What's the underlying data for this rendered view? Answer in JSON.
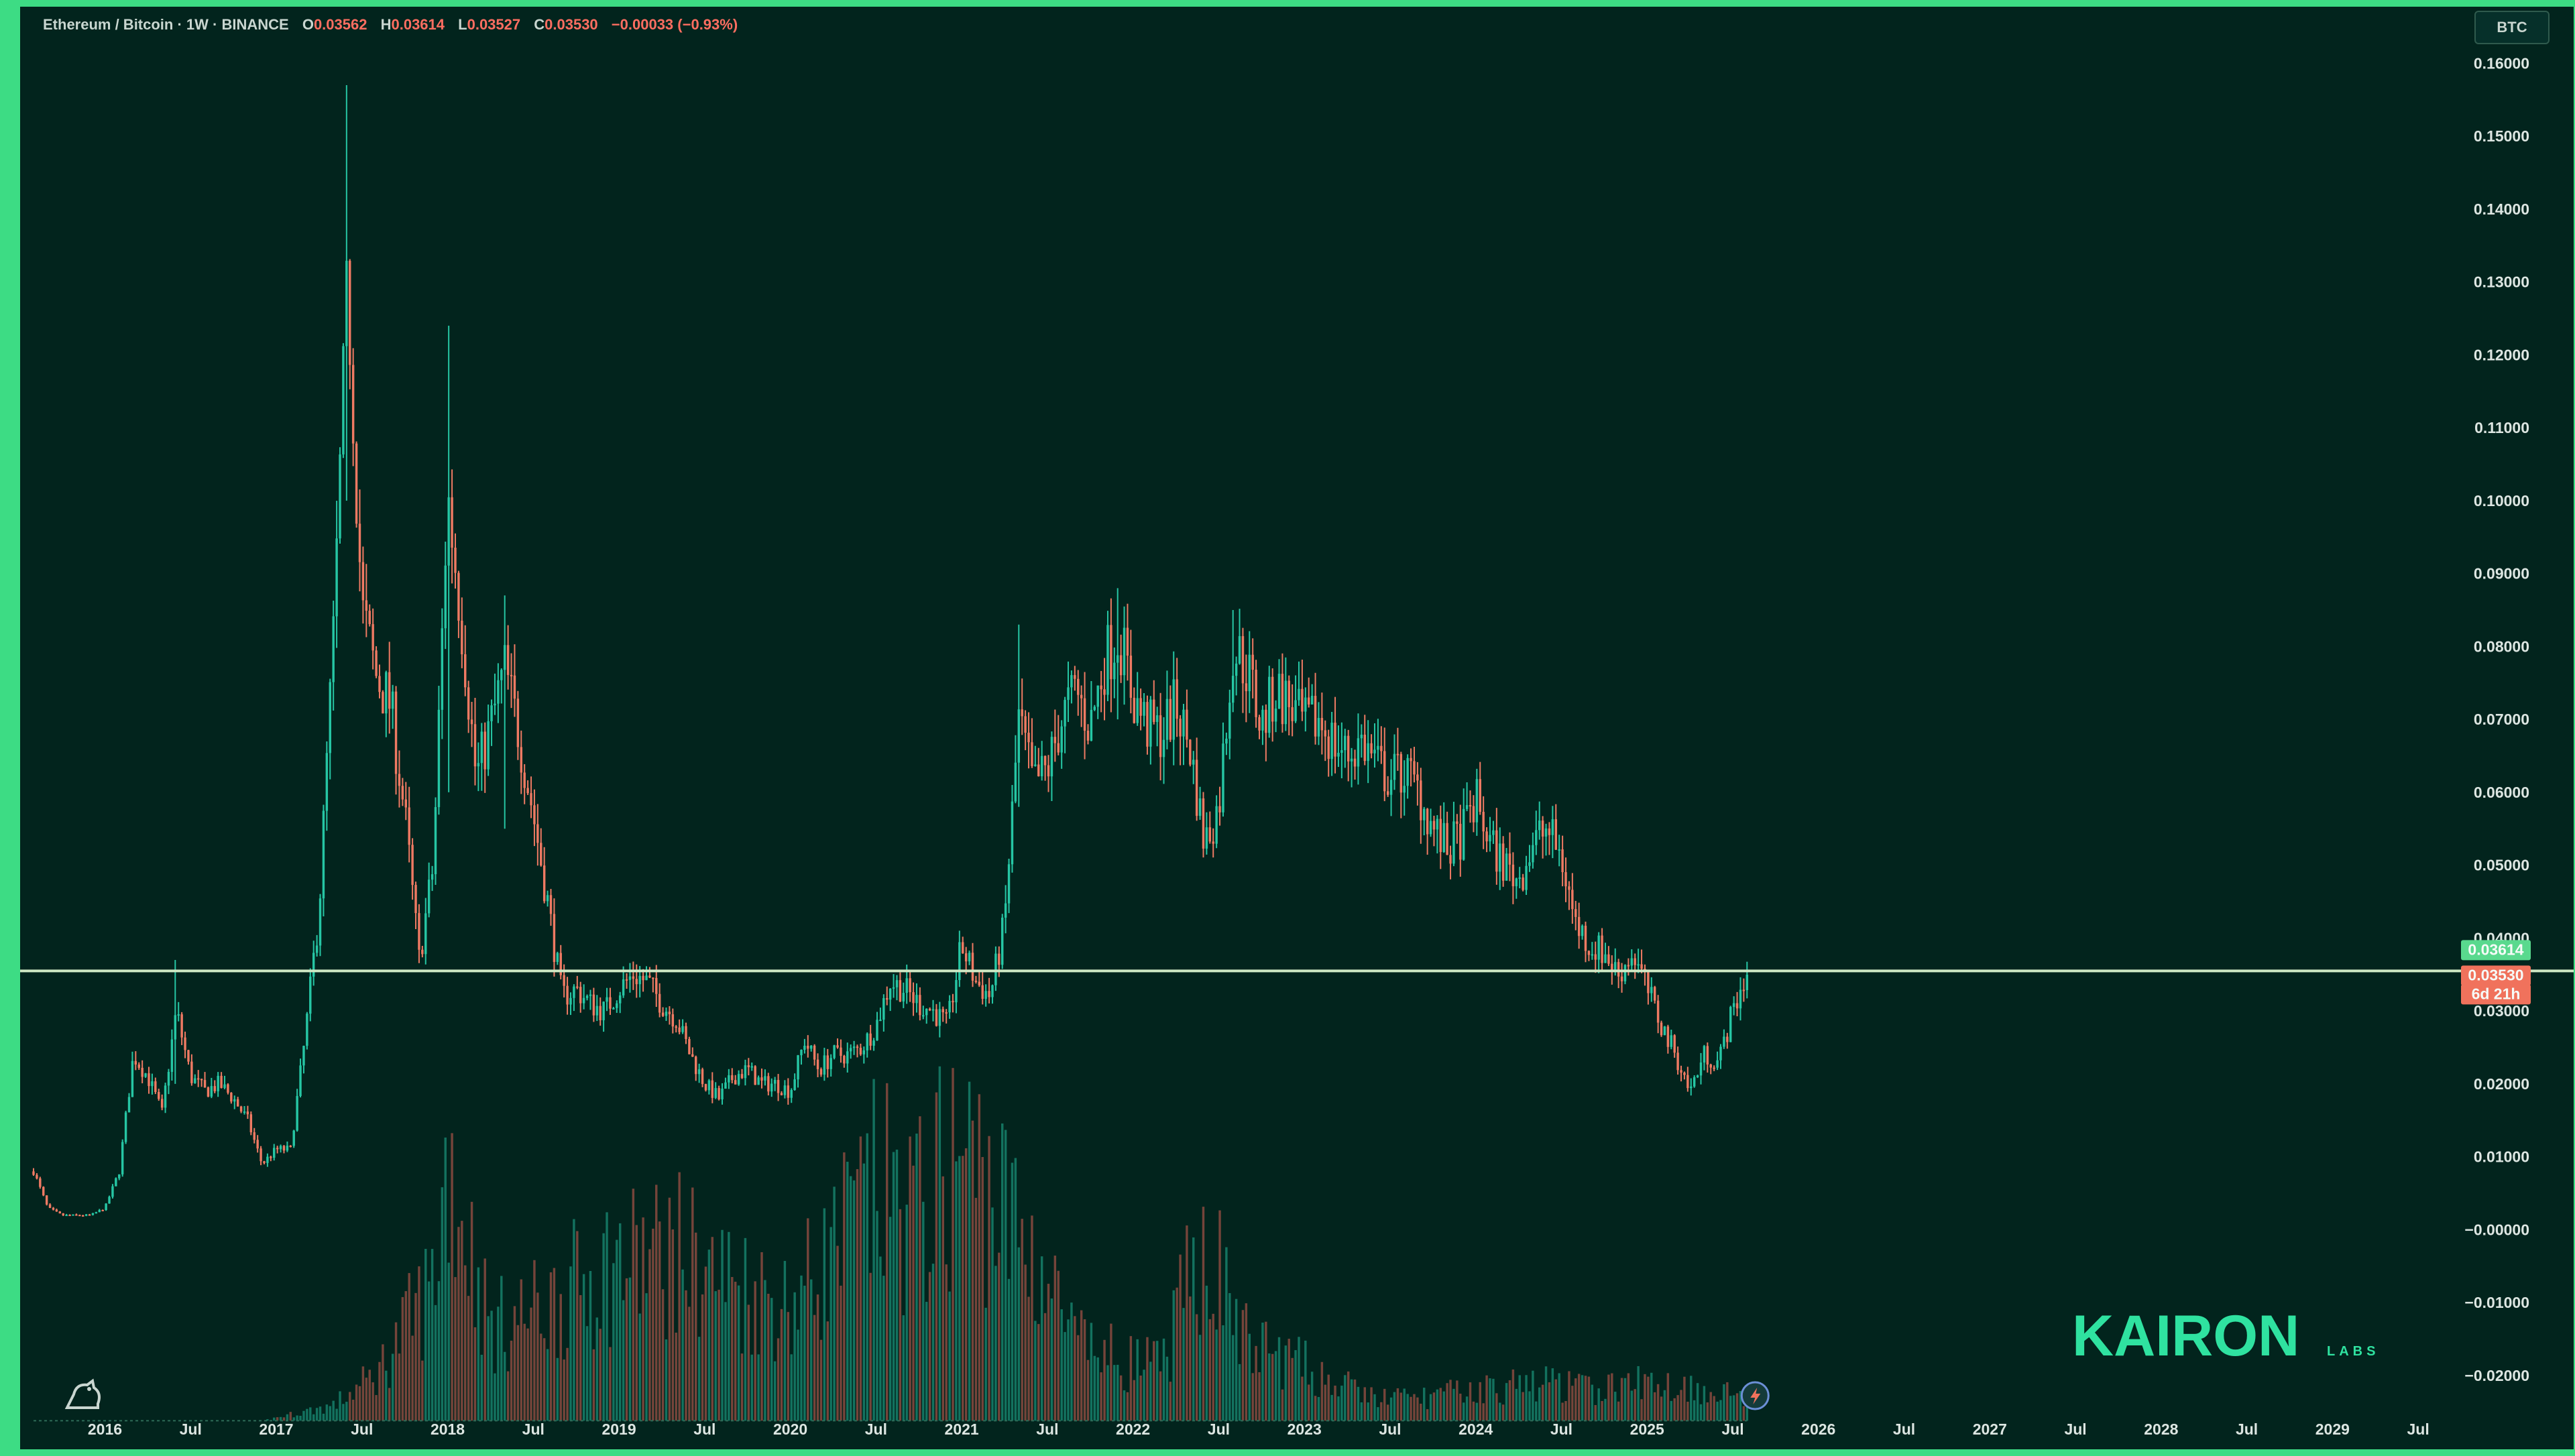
{
  "header": {
    "symbol": "Ethereum / Bitcoin · 1W · BINANCE",
    "open_label": "O",
    "open": "0.03562",
    "high_label": "H",
    "high": "0.03614",
    "low_label": "L",
    "low": "0.03527",
    "close_label": "C",
    "close": "0.03530",
    "change": "−0.00033 (−0.93%)"
  },
  "currency_button": "BTC",
  "price_tags": {
    "upper": "0.03614",
    "current": "0.03530",
    "countdown": "6d 21h"
  },
  "logo": {
    "brand": "KAIRON",
    "sub": "LABS"
  },
  "colors": {
    "up": "#26c6a4",
    "down": "#ef7a63",
    "background": "#02241d",
    "frame": "#3ddc84",
    "line": "#cfe8c4"
  },
  "icons": {
    "corner": "tradingview-logo-icon",
    "time": "lightning-icon"
  },
  "chart_data": {
    "type": "candlestick",
    "interval": "1W",
    "grid": false,
    "y_axis": {
      "ticks": [
        "0.16000",
        "0.15000",
        "0.14000",
        "0.13000",
        "0.12000",
        "0.11000",
        "0.10000",
        "0.09000",
        "0.08000",
        "0.07000",
        "0.06000",
        "0.05000",
        "0.04000",
        "0.03000",
        "0.02000",
        "0.01000",
        "−0.00000",
        "−0.01000",
        "−0.02000"
      ],
      "range": [
        -0.0235,
        0.165
      ]
    },
    "x_axis": {
      "ticks": [
        "2016",
        "Jul",
        "2017",
        "Jul",
        "2018",
        "Jul",
        "2019",
        "Jul",
        "2020",
        "Jul",
        "2021",
        "Jul",
        "2022",
        "Jul",
        "2023",
        "Jul",
        "2024",
        "Jul",
        "2025",
        "Jul",
        "2026",
        "Jul",
        "2027",
        "Jul",
        "2028",
        "Jul",
        "2029",
        "Jul"
      ],
      "range": [
        "2015-08",
        "2029-10"
      ]
    },
    "horizontal_line": 0.0355,
    "price_path": [
      [
        "2015-08",
        0.008
      ],
      [
        "2015-09",
        0.003
      ],
      [
        "2015-10",
        0.002
      ],
      [
        "2015-11",
        0.002
      ],
      [
        "2015-12",
        0.002
      ],
      [
        "2016-01",
        0.003
      ],
      [
        "2016-02",
        0.008
      ],
      [
        "2016-03",
        0.024
      ],
      [
        "2016-04",
        0.021
      ],
      [
        "2016-05",
        0.016
      ],
      [
        "2016-06",
        0.03
      ],
      [
        "2016-07",
        0.021
      ],
      [
        "2016-08",
        0.019
      ],
      [
        "2016-09",
        0.02
      ],
      [
        "2016-10",
        0.018
      ],
      [
        "2016-11",
        0.015
      ],
      [
        "2016-12",
        0.009
      ],
      [
        "2017-01",
        0.011
      ],
      [
        "2017-02",
        0.011
      ],
      [
        "2017-03",
        0.026
      ],
      [
        "2017-04",
        0.044
      ],
      [
        "2017-05",
        0.081
      ],
      [
        "2017-06",
        0.13
      ],
      [
        "2017-07",
        0.085
      ],
      [
        "2017-08",
        0.076
      ],
      [
        "2017-09",
        0.072
      ],
      [
        "2017-10",
        0.057
      ],
      [
        "2017-11",
        0.037
      ],
      [
        "2017-12",
        0.05
      ],
      [
        "2018-01",
        0.101
      ],
      [
        "2018-02",
        0.083
      ],
      [
        "2018-03",
        0.062
      ],
      [
        "2018-04",
        0.069
      ],
      [
        "2018-05",
        0.077
      ],
      [
        "2018-06",
        0.068
      ],
      [
        "2018-07",
        0.057
      ],
      [
        "2018-08",
        0.045
      ],
      [
        "2018-09",
        0.032
      ],
      [
        "2018-10",
        0.033
      ],
      [
        "2018-11",
        0.031
      ],
      [
        "2018-12",
        0.03
      ],
      [
        "2019-01",
        0.033
      ],
      [
        "2019-02",
        0.035
      ],
      [
        "2019-03",
        0.034
      ],
      [
        "2019-04",
        0.031
      ],
      [
        "2019-05",
        0.029
      ],
      [
        "2019-06",
        0.024
      ],
      [
        "2019-07",
        0.02
      ],
      [
        "2019-08",
        0.018
      ],
      [
        "2019-09",
        0.021
      ],
      [
        "2019-10",
        0.022
      ],
      [
        "2019-11",
        0.02
      ],
      [
        "2019-12",
        0.02
      ],
      [
        "2020-01",
        0.019
      ],
      [
        "2020-02",
        0.026
      ],
      [
        "2020-03",
        0.022
      ],
      [
        "2020-04",
        0.024
      ],
      [
        "2020-05",
        0.024
      ],
      [
        "2020-06",
        0.025
      ],
      [
        "2020-07",
        0.028
      ],
      [
        "2020-08",
        0.034
      ],
      [
        "2020-09",
        0.033
      ],
      [
        "2020-10",
        0.031
      ],
      [
        "2020-11",
        0.03
      ],
      [
        "2020-12",
        0.028
      ],
      [
        "2021-01",
        0.039
      ],
      [
        "2021-02",
        0.034
      ],
      [
        "2021-03",
        0.032
      ],
      [
        "2021-04",
        0.042
      ],
      [
        "2021-05",
        0.07
      ],
      [
        "2021-06",
        0.061
      ],
      [
        "2021-07",
        0.063
      ],
      [
        "2021-08",
        0.07
      ],
      [
        "2021-09",
        0.074
      ],
      [
        "2021-10",
        0.069
      ],
      [
        "2021-11",
        0.078
      ],
      [
        "2021-12",
        0.082
      ],
      [
        "2022-01",
        0.073
      ],
      [
        "2022-02",
        0.069
      ],
      [
        "2022-03",
        0.068
      ],
      [
        "2022-04",
        0.072
      ],
      [
        "2022-05",
        0.066
      ],
      [
        "2022-06",
        0.053
      ],
      [
        "2022-07",
        0.058
      ],
      [
        "2022-08",
        0.08
      ],
      [
        "2022-09",
        0.077
      ],
      [
        "2022-10",
        0.069
      ],
      [
        "2022-11",
        0.074
      ],
      [
        "2022-12",
        0.072
      ],
      [
        "2023-01",
        0.069
      ],
      [
        "2023-02",
        0.07
      ],
      [
        "2023-03",
        0.067
      ],
      [
        "2023-04",
        0.065
      ],
      [
        "2023-05",
        0.067
      ],
      [
        "2023-06",
        0.064
      ],
      [
        "2023-07",
        0.062
      ],
      [
        "2023-08",
        0.063
      ],
      [
        "2023-09",
        0.06
      ],
      [
        "2023-10",
        0.055
      ],
      [
        "2023-11",
        0.052
      ],
      [
        "2023-12",
        0.054
      ],
      [
        "2024-01",
        0.059
      ],
      [
        "2024-02",
        0.053
      ],
      [
        "2024-03",
        0.05
      ],
      [
        "2024-04",
        0.048
      ],
      [
        "2024-05",
        0.053
      ],
      [
        "2024-06",
        0.055
      ],
      [
        "2024-07",
        0.051
      ],
      [
        "2024-08",
        0.042
      ],
      [
        "2024-09",
        0.039
      ],
      [
        "2024-10",
        0.038
      ],
      [
        "2024-11",
        0.035
      ],
      [
        "2024-12",
        0.038
      ],
      [
        "2025-01",
        0.033
      ],
      [
        "2025-02",
        0.028
      ],
      [
        "2025-03",
        0.024
      ],
      [
        "2025-04",
        0.019
      ],
      [
        "2025-05",
        0.024
      ],
      [
        "2025-06",
        0.023
      ],
      [
        "2025-07",
        0.03
      ],
      [
        "2025-08",
        0.0353
      ]
    ],
    "spikes": [
      [
        "2017-06",
        0.157,
        0.1
      ],
      [
        "2018-01",
        0.124,
        0.06
      ],
      [
        "2021-12",
        0.088,
        0.07
      ],
      [
        "2022-08",
        0.085,
        0.072
      ],
      [
        "2016-06",
        0.037,
        0.02
      ],
      [
        "2018-05",
        0.087,
        0.055
      ],
      [
        "2021-05",
        0.083,
        0.058
      ]
    ],
    "volume_path": [
      [
        "2015-08",
        0
      ],
      [
        "2016-12",
        0
      ],
      [
        "2017-05",
        0.002
      ],
      [
        "2017-08",
        0.006
      ],
      [
        "2017-12",
        0.018
      ],
      [
        "2018-01",
        0.035
      ],
      [
        "2018-04",
        0.012
      ],
      [
        "2018-08",
        0.015
      ],
      [
        "2018-12",
        0.02
      ],
      [
        "2019-05",
        0.022
      ],
      [
        "2019-09",
        0.018
      ],
      [
        "2020-01",
        0.015
      ],
      [
        "2020-04",
        0.022
      ],
      [
        "2020-07",
        0.03
      ],
      [
        "2020-10",
        0.027
      ],
      [
        "2021-01",
        0.035
      ],
      [
        "2021-03",
        0.03
      ],
      [
        "2021-06",
        0.022
      ],
      [
        "2021-09",
        0.01
      ],
      [
        "2021-12",
        0.008
      ],
      [
        "2022-03",
        0.007
      ],
      [
        "2022-06",
        0.024
      ],
      [
        "2022-09",
        0.01
      ],
      [
        "2022-12",
        0.008
      ],
      [
        "2023-03",
        0.005
      ],
      [
        "2023-06",
        0.003
      ],
      [
        "2023-09",
        0.003
      ],
      [
        "2024-01",
        0.004
      ],
      [
        "2024-06",
        0.005
      ],
      [
        "2024-09",
        0.004
      ],
      [
        "2025-01",
        0.005
      ],
      [
        "2025-06",
        0.004
      ],
      [
        "2025-08",
        0.003
      ]
    ]
  }
}
